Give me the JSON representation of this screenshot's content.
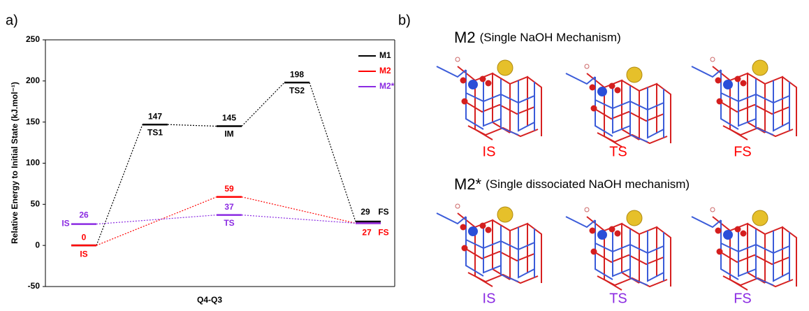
{
  "chart_data": {
    "type": "energy-diagram",
    "panel_label": "a)",
    "ylabel": "Relative Energy to Initial State (kJ.mol⁻¹)",
    "xlabel": "Q4-Q3",
    "ylim": [
      -50,
      250
    ],
    "yticks": [
      -50,
      0,
      50,
      100,
      150,
      200,
      250
    ],
    "series": [
      {
        "name": "M1",
        "color": "#000000",
        "values": [
          0,
          147,
          145,
          198,
          29
        ],
        "value_labels": [
          null,
          "147",
          "145",
          "198",
          "29"
        ],
        "stages": [
          null,
          "TS1",
          "IM",
          "TS2",
          "FS"
        ]
      },
      {
        "name": "M2",
        "color": "#ff0000",
        "values": [
          0,
          59,
          27
        ],
        "value_labels": [
          "0",
          "59",
          "27"
        ],
        "stages": [
          "IS",
          null,
          "FS"
        ]
      },
      {
        "name": "M2*",
        "color": "#8b2be2",
        "values": [
          26,
          37,
          27
        ],
        "value_labels": [
          "26",
          "37",
          null
        ],
        "stages": [
          "IS",
          "TS",
          null
        ]
      }
    ]
  },
  "structures": {
    "panel_label": "b)",
    "rows": [
      {
        "title_main": "M2",
        "title_sub": "(Single NaOH Mechanism)",
        "states": [
          "IS",
          "TS",
          "FS"
        ],
        "color": "#ff0000"
      },
      {
        "title_main": "M2*",
        "title_sub": "(Single dissociated NaOH mechanism)",
        "states": [
          "IS",
          "TS",
          "FS"
        ],
        "color": "#8b2be2"
      }
    ]
  }
}
